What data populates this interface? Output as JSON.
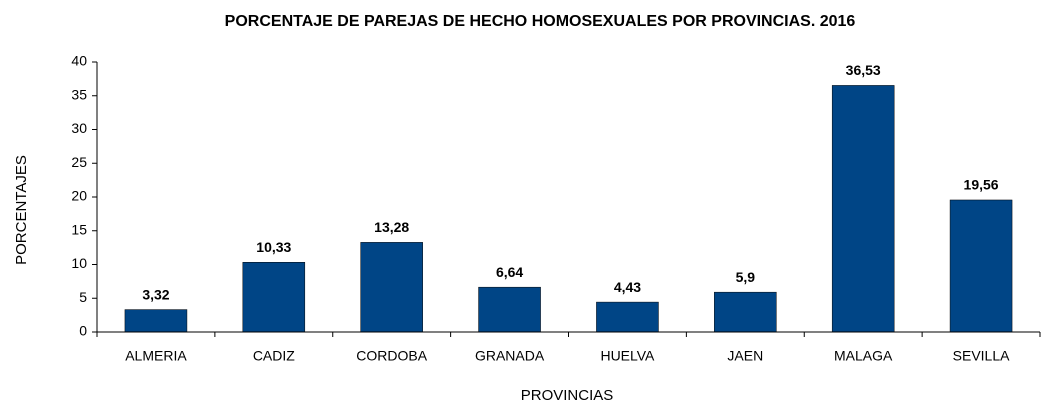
{
  "chart_data": {
    "type": "bar",
    "title": "PORCENTAJE DE PAREJAS DE HECHO HOMOSEXUALES POR PROVINCIAS. 2016",
    "x_label": "PROVINCIAS",
    "y_label": "PORCENTAJES",
    "categories": [
      "ALMERIA",
      "CADIZ",
      "CORDOBA",
      "GRANADA",
      "HUELVA",
      "JAEN",
      "MALAGA",
      "SEVILLA"
    ],
    "values": [
      3.32,
      10.33,
      13.28,
      6.64,
      4.43,
      5.9,
      36.53,
      19.56
    ],
    "value_labels": [
      "3,32",
      "10,33",
      "13,28",
      "6,64",
      "4,43",
      "5,9",
      "36,53",
      "19,56"
    ],
    "color": "#004586",
    "ylim": [
      0,
      40
    ],
    "yticks": [
      0,
      5,
      10,
      15,
      20,
      25,
      30,
      35,
      40
    ],
    "grid": false
  }
}
